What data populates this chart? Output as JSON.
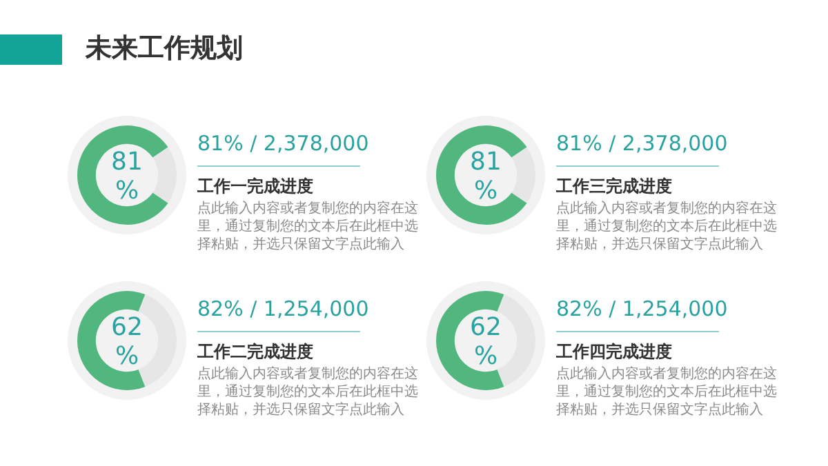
{
  "chart_data": [
    {
      "type": "other",
      "title": "未来工作规划"
    },
    {
      "type": "donut",
      "title": "工作一完成进度",
      "subtitle": "81% / 2,378,000",
      "categories": [
        null,
        null
      ],
      "values": [
        81,
        19
      ],
      "colors": [
        "#52b77f",
        "#e6e6e6"
      ],
      "value_labels": [
        "81 %",
        null
      ],
      "annotations": [
        "点此输入内容或者复制您的内容在这里，通过复制您的文本后在此框中选择粘贴，并选只保留文字点此输入"
      ]
    },
    {
      "type": "donut",
      "title": "工作三完成进度",
      "subtitle": "81% / 2,378,000",
      "categories": [
        null,
        null
      ],
      "values": [
        81,
        19
      ],
      "colors": [
        "#52b77f",
        "#e6e6e6"
      ],
      "value_labels": [
        "81 %",
        null
      ],
      "annotations": [
        "点此输入内容或者复制您的内容在这里，通过复制您的文本后在此框中选择粘贴，并选只保留文字点此输入"
      ]
    },
    {
      "type": "donut",
      "title": "工作二完成进度",
      "subtitle": "82% / 1,254,000",
      "categories": [
        null,
        null
      ],
      "values": [
        62,
        38
      ],
      "colors": [
        "#52b77f",
        "#e6e6e6"
      ],
      "value_labels": [
        "62 %",
        null
      ],
      "annotations": [
        "点此输入内容或者复制您的内容在这里，通过复制您的文本后在此框中选择粘贴，并选只保留文字点此输入"
      ]
    },
    {
      "type": "donut",
      "title": "工作四完成进度",
      "subtitle": "82% / 1,254,000",
      "categories": [
        null,
        null
      ],
      "values": [
        62,
        38
      ],
      "colors": [
        "#52b77f",
        "#e6e6e6"
      ],
      "value_labels": [
        "62 %",
        null
      ],
      "annotations": [
        "点此输入内容或者复制您的内容在这里，通过复制您的文本后在此框中选择粘贴，并选只保留文字点此输入"
      ]
    }
  ]
}
